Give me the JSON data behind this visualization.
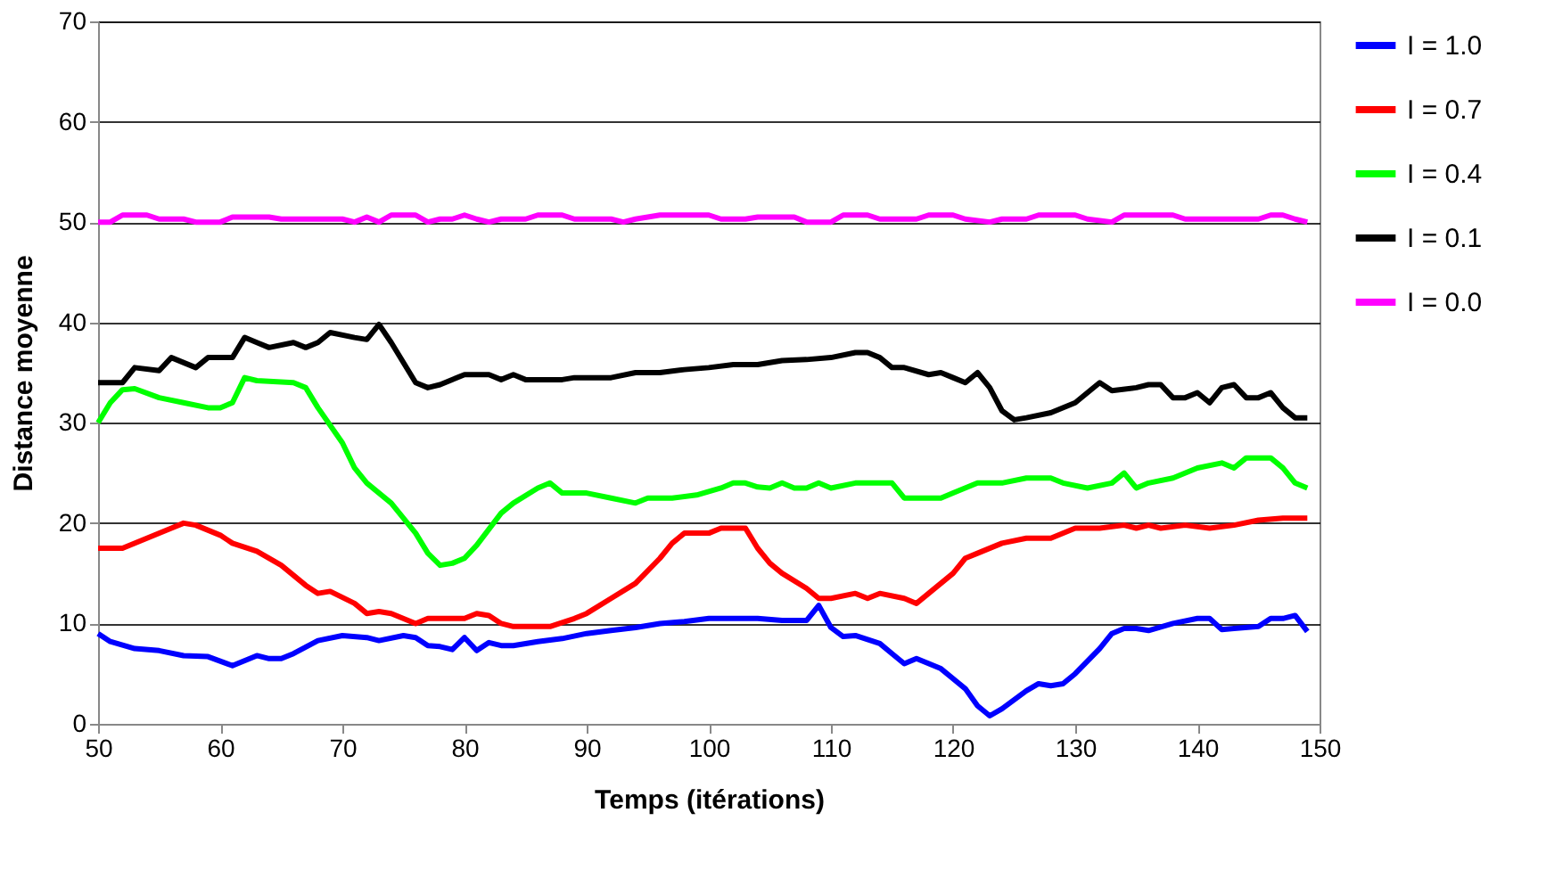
{
  "chart_data": {
    "type": "line",
    "xlabel": "Temps (itérations)",
    "ylabel": "Distance moyenne",
    "xlim": [
      50,
      150
    ],
    "ylim": [
      0,
      70
    ],
    "xticks": [
      50,
      60,
      70,
      80,
      90,
      100,
      110,
      120,
      130,
      140,
      150
    ],
    "yticks": [
      0,
      10,
      20,
      30,
      40,
      50,
      60,
      70
    ],
    "grid": "y",
    "legend": "right",
    "marker": "none",
    "line_style": "solid",
    "series": [
      {
        "name": "I = 1.0",
        "color": "#0000ff",
        "x": [
          50,
          51,
          53,
          55,
          57,
          59,
          61,
          63,
          64,
          65,
          66,
          68,
          70,
          72,
          73,
          75,
          76,
          77,
          78,
          79,
          80,
          81,
          82,
          83,
          84,
          86,
          88,
          90,
          92,
          94,
          96,
          98,
          100,
          102,
          104,
          106,
          108,
          109,
          110,
          111,
          112,
          114,
          115,
          116,
          117,
          119,
          121,
          122,
          123,
          124,
          126,
          127,
          128,
          129,
          130,
          132,
          133,
          134,
          135,
          136,
          138,
          140,
          141,
          142,
          143,
          145,
          146,
          147,
          148,
          149
        ],
        "values": [
          9,
          8.2,
          7.5,
          7.3,
          6.8,
          6.7,
          5.8,
          6.8,
          6.5,
          6.5,
          7,
          8.3,
          8.8,
          8.6,
          8.3,
          8.8,
          8.6,
          7.8,
          7.7,
          7.4,
          8.6,
          7.3,
          8.1,
          7.8,
          7.8,
          8.2,
          8.5,
          9,
          9.3,
          9.6,
          10,
          10.2,
          10.5,
          10.5,
          10.5,
          10.3,
          10.3,
          11.8,
          9.6,
          8.7,
          8.8,
          8,
          7,
          6,
          6.5,
          5.5,
          3.5,
          1.8,
          0.8,
          1.5,
          3.3,
          4,
          3.8,
          4,
          5,
          7.5,
          9,
          9.5,
          9.5,
          9.3,
          10,
          10.5,
          10.5,
          9.4,
          9.5,
          9.7,
          10.5,
          10.5,
          10.8,
          9.2
        ]
      },
      {
        "name": "I = 0.7",
        "color": "#ff0000",
        "x": [
          50,
          52,
          54,
          56,
          57,
          58,
          60,
          61,
          63,
          65,
          67,
          68,
          69,
          71,
          72,
          73,
          74,
          76,
          77,
          80,
          81,
          82,
          83,
          84,
          87,
          89,
          90,
          92,
          94,
          96,
          97,
          98,
          99,
          100,
          101,
          103,
          104,
          105,
          106,
          108,
          109,
          110,
          112,
          113,
          114,
          116,
          117,
          118,
          119,
          120,
          121,
          122,
          124,
          126,
          128,
          130,
          132,
          134,
          135,
          136,
          137,
          139,
          141,
          143,
          145,
          147,
          149
        ],
        "values": [
          17.5,
          17.5,
          18.5,
          19.5,
          20,
          19.8,
          18.8,
          18,
          17.2,
          15.8,
          13.8,
          13,
          13.2,
          12,
          11,
          11.2,
          11,
          10,
          10.5,
          10.5,
          11,
          10.8,
          10,
          9.7,
          9.7,
          10.5,
          11,
          12.5,
          14,
          16.5,
          18,
          19,
          19,
          19,
          19.5,
          19.5,
          17.5,
          16,
          15,
          13.5,
          12.5,
          12.5,
          13,
          12.5,
          13,
          12.5,
          12,
          13,
          14,
          15,
          16.5,
          17,
          18,
          18.5,
          18.5,
          19.5,
          19.5,
          19.8,
          19.5,
          19.8,
          19.5,
          19.8,
          19.5,
          19.8,
          20.3,
          20.5,
          20.5
        ]
      },
      {
        "name": "I = 0.4",
        "color": "#00ff00",
        "x": [
          50,
          51,
          52,
          53,
          55,
          57,
          59,
          60,
          61,
          62,
          63,
          66,
          67,
          68,
          70,
          71,
          72,
          73,
          74,
          76,
          77,
          78,
          79,
          80,
          81,
          83,
          84,
          86,
          87,
          88,
          90,
          92,
          94,
          95,
          97,
          99,
          101,
          102,
          103,
          104,
          105,
          106,
          107,
          108,
          109,
          110,
          112,
          115,
          116,
          119,
          120,
          122,
          124,
          126,
          128,
          129,
          131,
          133,
          134,
          135,
          136,
          138,
          140,
          142,
          143,
          144,
          146,
          147,
          148,
          149
        ],
        "values": [
          30,
          32,
          33.3,
          33.4,
          32.5,
          32,
          31.5,
          31.5,
          32,
          34.5,
          34.2,
          34,
          33.5,
          31.5,
          28,
          25.5,
          24,
          23,
          22,
          19,
          17,
          15.8,
          16,
          16.5,
          17.8,
          21,
          22,
          23.5,
          24,
          23,
          23,
          22.5,
          22,
          22.5,
          22.5,
          22.8,
          23.5,
          24,
          24,
          23.6,
          23.5,
          24,
          23.5,
          23.5,
          24,
          23.5,
          24,
          24,
          22.5,
          22.5,
          23,
          24,
          24,
          24.5,
          24.5,
          24,
          23.5,
          24,
          25,
          23.5,
          24,
          24.5,
          25.5,
          26,
          25.5,
          26.5,
          26.5,
          25.5,
          24,
          23.5
        ]
      },
      {
        "name": "I = 0.1",
        "color": "#000000",
        "x": [
          50,
          52,
          53,
          55,
          56,
          58,
          59,
          61,
          62,
          63,
          64,
          66,
          67,
          68,
          69,
          71,
          72,
          73,
          74,
          75,
          76,
          77,
          78,
          80,
          82,
          83,
          84,
          85,
          88,
          89,
          92,
          94,
          96,
          98,
          100,
          102,
          104,
          106,
          108,
          110,
          112,
          113,
          114,
          115,
          116,
          118,
          119,
          120,
          121,
          122,
          123,
          124,
          125,
          126,
          128,
          130,
          131,
          132,
          133,
          135,
          136,
          137,
          138,
          139,
          140,
          141,
          142,
          143,
          144,
          145,
          146,
          147,
          148,
          149
        ],
        "values": [
          34,
          34,
          35.5,
          35.2,
          36.5,
          35.5,
          36.5,
          36.5,
          38.5,
          38,
          37.5,
          38,
          37.5,
          38,
          39,
          38.5,
          38.3,
          39.8,
          38,
          36,
          34,
          33.5,
          33.8,
          34.8,
          34.8,
          34.3,
          34.8,
          34.3,
          34.3,
          34.5,
          34.5,
          35,
          35,
          35.3,
          35.5,
          35.8,
          35.8,
          36.2,
          36.3,
          36.5,
          37,
          37,
          36.5,
          35.5,
          35.5,
          34.8,
          35,
          34.5,
          34,
          35,
          33.5,
          31.2,
          30.3,
          30.5,
          31,
          32,
          33,
          34,
          33.2,
          33.5,
          33.8,
          33.8,
          32.5,
          32.5,
          33,
          32,
          33.5,
          33.8,
          32.5,
          32.5,
          33,
          31.5,
          30.5,
          30.5
        ]
      },
      {
        "name": "I = 0.0",
        "color": "#ff00ff",
        "x": [
          50,
          51,
          52,
          54,
          55,
          57,
          58,
          60,
          61,
          64,
          65,
          68,
          70,
          71,
          72,
          73,
          74,
          76,
          77,
          78,
          79,
          80,
          81,
          82,
          83,
          85,
          86,
          88,
          89,
          92,
          93,
          94,
          96,
          100,
          101,
          103,
          104,
          107,
          108,
          110,
          111,
          113,
          114,
          117,
          118,
          120,
          121,
          123,
          124,
          126,
          127,
          130,
          131,
          133,
          134,
          138,
          139,
          142,
          143,
          145,
          146,
          147,
          148,
          149
        ],
        "values": [
          50,
          50,
          50.7,
          50.7,
          50.3,
          50.3,
          50,
          50,
          50.5,
          50.5,
          50.3,
          50.3,
          50.3,
          50,
          50.5,
          50,
          50.7,
          50.7,
          50,
          50.3,
          50.3,
          50.7,
          50.3,
          50,
          50.3,
          50.3,
          50.7,
          50.7,
          50.3,
          50.3,
          50,
          50.3,
          50.7,
          50.7,
          50.3,
          50.3,
          50.5,
          50.5,
          50,
          50,
          50.7,
          50.7,
          50.3,
          50.3,
          50.7,
          50.7,
          50.3,
          50,
          50.3,
          50.3,
          50.7,
          50.7,
          50.3,
          50,
          50.7,
          50.7,
          50.3,
          50.3,
          50.3,
          50.3,
          50.7,
          50.7,
          50.3,
          50
        ]
      }
    ]
  }
}
